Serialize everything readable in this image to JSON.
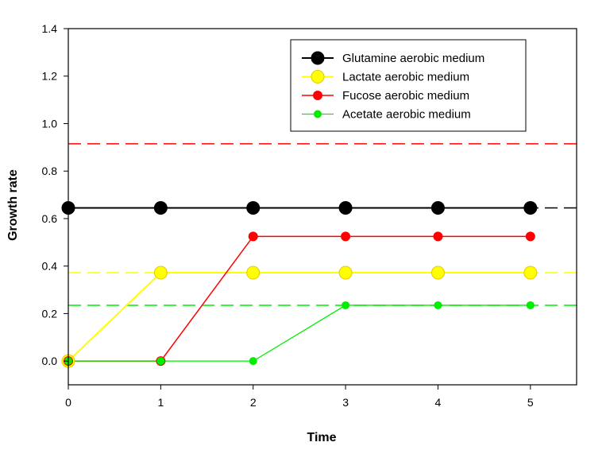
{
  "chart_data": {
    "type": "line",
    "xlabel": "Time",
    "ylabel": "Growth rate",
    "xlim": [
      0,
      5.5
    ],
    "ylim": [
      -0.1,
      1.4
    ],
    "x_ticks": [
      0,
      1,
      2,
      3,
      4,
      5
    ],
    "y_ticks": [
      0.0,
      0.2,
      0.4,
      0.6,
      0.8,
      1.0,
      1.2,
      1.4
    ],
    "x_tick_labels": [
      "0",
      "1",
      "2",
      "3",
      "4",
      "5"
    ],
    "y_tick_labels": [
      "0.0",
      "0.2",
      "0.4",
      "0.6",
      "0.8",
      "1.0",
      "1.2",
      "1.4"
    ],
    "legend_position": "top-right",
    "series": [
      {
        "name": "Glutamine aerobic medium",
        "color": "#000000",
        "marker": "large",
        "x": [
          0,
          1,
          2,
          3,
          4,
          5
        ],
        "values": [
          0.645,
          0.645,
          0.645,
          0.645,
          0.645,
          0.645
        ],
        "reference_line": 0.645
      },
      {
        "name": "Lactate aerobic medium",
        "color": "#ffff00",
        "marker": "large",
        "x": [
          0,
          1,
          2,
          3,
          4,
          5
        ],
        "values": [
          0.0,
          0.372,
          0.372,
          0.372,
          0.372,
          0.372
        ],
        "reference_line": 0.372
      },
      {
        "name": "Fucose aerobic medium",
        "color": "#ff0000",
        "marker": "medium",
        "x": [
          0,
          1,
          2,
          3,
          4,
          5
        ],
        "values": [
          0.0,
          0.0,
          0.525,
          0.525,
          0.525,
          0.525
        ],
        "reference_line": 0.915
      },
      {
        "name": "Acetate aerobic medium",
        "color": "#00ee00",
        "marker": "small",
        "x": [
          0,
          1,
          2,
          3,
          4,
          5
        ],
        "values": [
          0.0,
          0.0,
          0.0,
          0.235,
          0.235,
          0.235
        ],
        "reference_line": 0.235
      }
    ]
  }
}
